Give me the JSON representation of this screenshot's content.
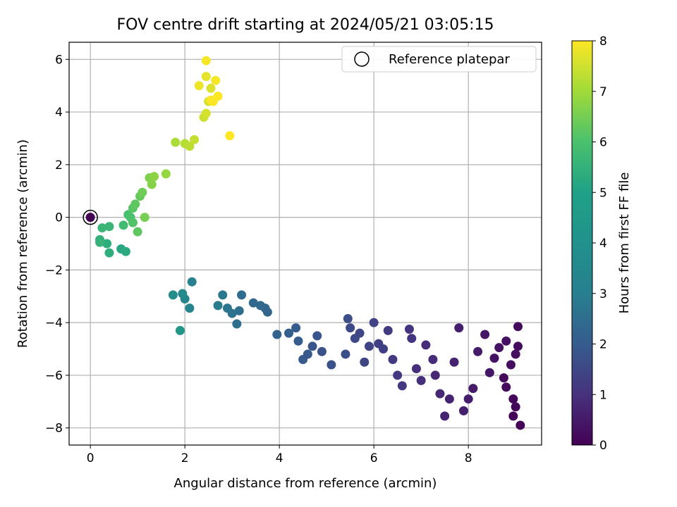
{
  "chart_data": {
    "type": "scatter",
    "title": "FOV centre drift starting at 2024/05/21 03:05:15",
    "xlabel": "Angular distance from reference (arcmin)",
    "ylabel": "Rotation from reference (arcmin)",
    "xlim": [
      -0.45,
      9.55
    ],
    "ylim": [
      -8.65,
      6.65
    ],
    "xticks": [
      0,
      2,
      4,
      6,
      8
    ],
    "yticks": [
      -8,
      -6,
      -4,
      -2,
      0,
      2,
      4,
      6
    ],
    "xtick_labels": [
      "0",
      "2",
      "4",
      "6",
      "8"
    ],
    "ytick_labels": [
      "−8",
      "−6",
      "−4",
      "−2",
      "0",
      "2",
      "4",
      "6"
    ],
    "grid": true,
    "legend": {
      "location": "top-right",
      "entries": [
        "Reference platepar"
      ]
    },
    "reference_point": {
      "x": 0,
      "y": 0,
      "label": "Reference platepar"
    },
    "colorbar": {
      "label": "Hours from first FF file",
      "colormap": "viridis",
      "range": [
        0,
        8
      ],
      "ticks": [
        0,
        1,
        2,
        3,
        4,
        5,
        6,
        7,
        8
      ],
      "tick_labels": [
        "0",
        "1",
        "2",
        "3",
        "4",
        "5",
        "6",
        "7",
        "8"
      ]
    },
    "series": [
      {
        "points": [
          [
            0.0,
            0.0,
            0.0
          ],
          [
            9.1,
            -7.9,
            0.05
          ],
          [
            8.95,
            -7.55,
            0.1
          ],
          [
            9.0,
            -7.2,
            0.15
          ],
          [
            8.95,
            -6.9,
            0.1
          ],
          [
            8.8,
            -6.45,
            0.2
          ],
          [
            8.75,
            -6.1,
            0.2
          ],
          [
            9.05,
            -4.15,
            0.2
          ],
          [
            9.05,
            -4.9,
            0.25
          ],
          [
            9.0,
            -5.2,
            0.3
          ],
          [
            8.9,
            -5.6,
            0.3
          ],
          [
            8.8,
            -4.7,
            0.35
          ],
          [
            8.65,
            -4.95,
            0.4
          ],
          [
            8.55,
            -5.35,
            0.4
          ],
          [
            8.45,
            -5.9,
            0.5
          ],
          [
            8.35,
            -4.45,
            0.5
          ],
          [
            8.2,
            -5.1,
            0.6
          ],
          [
            8.1,
            -6.5,
            0.6
          ],
          [
            8.0,
            -6.9,
            0.65
          ],
          [
            7.9,
            -7.35,
            0.7
          ],
          [
            7.8,
            -4.2,
            0.7
          ],
          [
            7.7,
            -5.5,
            0.8
          ],
          [
            7.6,
            -6.9,
            0.8
          ],
          [
            7.5,
            -7.55,
            0.85
          ],
          [
            7.4,
            -6.7,
            0.9
          ],
          [
            7.3,
            -6.0,
            0.9
          ],
          [
            7.25,
            -5.4,
            1.0
          ],
          [
            7.1,
            -4.85,
            1.0
          ],
          [
            7.0,
            -6.2,
            1.1
          ],
          [
            6.9,
            -5.75,
            1.1
          ],
          [
            6.8,
            -4.6,
            1.2
          ],
          [
            6.75,
            -4.25,
            1.2
          ],
          [
            6.6,
            -6.4,
            1.3
          ],
          [
            6.5,
            -6.0,
            1.3
          ],
          [
            6.4,
            -5.4,
            1.4
          ],
          [
            6.3,
            -4.3,
            1.4
          ],
          [
            6.2,
            -5.0,
            1.5
          ],
          [
            6.1,
            -4.8,
            1.5
          ],
          [
            6.0,
            -4.0,
            1.6
          ],
          [
            5.9,
            -4.9,
            1.6
          ],
          [
            5.8,
            -5.5,
            1.7
          ],
          [
            5.7,
            -4.4,
            1.7
          ],
          [
            5.6,
            -4.6,
            1.8
          ],
          [
            5.5,
            -4.2,
            1.8
          ],
          [
            5.45,
            -3.85,
            1.9
          ],
          [
            5.4,
            -5.2,
            1.9
          ],
          [
            5.1,
            -5.6,
            2.0
          ],
          [
            4.9,
            -5.1,
            2.0
          ],
          [
            4.8,
            -4.5,
            2.1
          ],
          [
            4.7,
            -4.9,
            2.1
          ],
          [
            4.6,
            -5.2,
            2.2
          ],
          [
            4.5,
            -5.4,
            2.2
          ],
          [
            4.4,
            -4.7,
            2.3
          ],
          [
            4.35,
            -4.2,
            2.3
          ],
          [
            4.2,
            -4.4,
            2.4
          ],
          [
            3.95,
            -4.45,
            2.5
          ],
          [
            3.75,
            -3.6,
            2.6
          ],
          [
            3.7,
            -3.45,
            2.6
          ],
          [
            3.6,
            -3.35,
            2.7
          ],
          [
            3.45,
            -3.25,
            2.7
          ],
          [
            3.2,
            -2.95,
            2.8
          ],
          [
            3.15,
            -3.55,
            2.9
          ],
          [
            3.1,
            -4.05,
            2.9
          ],
          [
            3.0,
            -3.65,
            3.0
          ],
          [
            2.9,
            -3.45,
            3.1
          ],
          [
            2.8,
            -2.95,
            3.2
          ],
          [
            2.7,
            -3.35,
            3.3
          ],
          [
            2.15,
            -2.45,
            3.5
          ],
          [
            2.1,
            -3.45,
            3.6
          ],
          [
            2.0,
            -3.1,
            3.7
          ],
          [
            1.95,
            -2.9,
            3.8
          ],
          [
            1.75,
            -2.95,
            3.9
          ],
          [
            1.9,
            -4.3,
            4.2
          ],
          [
            0.65,
            -1.2,
            4.8
          ],
          [
            0.75,
            -1.3,
            4.9
          ],
          [
            0.4,
            -1.35,
            5.0
          ],
          [
            0.35,
            -1.0,
            5.0
          ],
          [
            0.2,
            -0.85,
            5.1
          ],
          [
            0.2,
            -0.95,
            5.2
          ],
          [
            0.25,
            -0.4,
            5.3
          ],
          [
            0.4,
            -0.35,
            5.3
          ],
          [
            0.7,
            -0.3,
            5.5
          ],
          [
            0.8,
            0.1,
            5.6
          ],
          [
            0.85,
            0.0,
            5.7
          ],
          [
            0.9,
            -0.2,
            5.8
          ],
          [
            0.9,
            0.35,
            5.9
          ],
          [
            1.0,
            -0.55,
            6.0
          ],
          [
            0.95,
            0.5,
            6.0
          ],
          [
            1.05,
            0.8,
            6.1
          ],
          [
            1.1,
            0.95,
            6.2
          ],
          [
            1.15,
            0.0,
            6.3
          ],
          [
            1.25,
            1.5,
            6.4
          ],
          [
            1.3,
            1.25,
            6.5
          ],
          [
            1.35,
            1.55,
            6.6
          ],
          [
            1.6,
            1.65,
            6.7
          ],
          [
            1.8,
            2.85,
            7.0
          ],
          [
            2.0,
            2.8,
            7.1
          ],
          [
            2.1,
            2.7,
            7.2
          ],
          [
            2.2,
            2.95,
            7.3
          ],
          [
            2.4,
            3.8,
            7.4
          ],
          [
            2.45,
            3.95,
            7.5
          ],
          [
            2.5,
            4.4,
            7.5
          ],
          [
            2.55,
            4.9,
            7.6
          ],
          [
            2.45,
            5.35,
            7.7
          ],
          [
            2.3,
            5.0,
            7.8
          ],
          [
            2.45,
            5.95,
            7.9
          ],
          [
            2.65,
            5.2,
            7.9
          ],
          [
            2.6,
            4.4,
            8.0
          ],
          [
            2.7,
            4.6,
            8.0
          ],
          [
            2.55,
            4.45,
            7.95
          ],
          [
            2.95,
            3.1,
            8.0
          ]
        ]
      }
    ]
  }
}
